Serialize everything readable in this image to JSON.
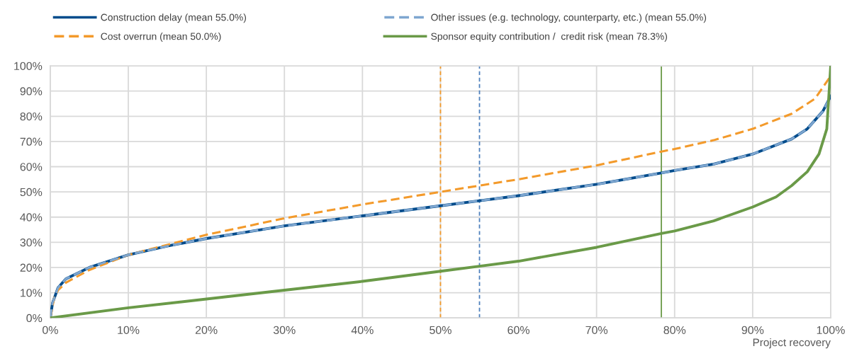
{
  "chart_data": {
    "type": "line",
    "xlabel": "Project recovery",
    "x": [
      0,
      0.3,
      1,
      2,
      5,
      10,
      15,
      20,
      25,
      30,
      40,
      50,
      55,
      60,
      70,
      78.3,
      80,
      85,
      90,
      95,
      97,
      99,
      100
    ],
    "series": [
      {
        "name": "Construction delay (mean 55.0%)",
        "color": "#004c8c",
        "line_style": "solid",
        "values": [
          0,
          6,
          12,
          15.5,
          20,
          25,
          28.5,
          31.5,
          34,
          36.5,
          40.5,
          44.5,
          46.5,
          48.5,
          53,
          57.5,
          58.5,
          61,
          65,
          71,
          75,
          82,
          88
        ]
      },
      {
        "name": "Cost overrun (mean 50.0%)",
        "color": "#f39a2b",
        "line_style": "dashed",
        "x": [
          0,
          0.2,
          0.5,
          1,
          2,
          5,
          10,
          15,
          20,
          30,
          40,
          50,
          55,
          60,
          70,
          78.3,
          80,
          85,
          90,
          95,
          98,
          100
        ],
        "values": [
          0,
          3,
          8,
          11,
          14,
          19,
          25,
          29,
          33,
          39.5,
          45,
          50,
          52.5,
          55,
          60.5,
          66,
          67,
          70.5,
          75,
          81,
          87,
          96
        ]
      },
      {
        "name": "Other issues (e.g. technology, counterparty, etc.) (mean 55.0%)",
        "color": "#7ea6d0",
        "line_style": "dashed",
        "values": [
          0,
          6,
          12,
          15.5,
          20,
          25,
          28.5,
          31.5,
          34,
          36.5,
          40.5,
          44.5,
          46.5,
          48.5,
          53,
          57.5,
          58.5,
          61,
          65,
          71,
          75,
          82,
          88
        ]
      },
      {
        "name": "Sponsor equity contribution /  credit risk (mean 78.3%)",
        "color": "#6a9a48",
        "line_style": "solid",
        "x": [
          0,
          10,
          20,
          30,
          40,
          50,
          55,
          60,
          70,
          78.3,
          80,
          85,
          90,
          93,
          95,
          97,
          98.5,
          99.5,
          100
        ],
        "values": [
          0,
          4,
          7.5,
          11,
          14.5,
          18.5,
          20.5,
          22.5,
          28,
          33.5,
          34.5,
          38.5,
          44,
          48,
          52.5,
          58,
          65,
          75,
          100
        ]
      }
    ],
    "ref_lines": [
      {
        "axis": "x",
        "value": 50,
        "color": "#f39a2b",
        "line_style": "dashed"
      },
      {
        "axis": "x",
        "value": 55,
        "color": "#4f81bd",
        "line_style": "dashed"
      },
      {
        "axis": "x",
        "value": 78.3,
        "color": "#6a9a48",
        "line_style": "solid"
      }
    ],
    "xlim": [
      0,
      100
    ],
    "xticks": [
      {
        "value": 0,
        "label": "0%"
      },
      {
        "value": 10,
        "label": "10%"
      },
      {
        "value": 20,
        "label": "20%"
      },
      {
        "value": 30,
        "label": "30%"
      },
      {
        "value": 40,
        "label": "40%"
      },
      {
        "value": 50,
        "label": "50%"
      },
      {
        "value": 60,
        "label": "60%"
      },
      {
        "value": 70,
        "label": "70%"
      },
      {
        "value": 80,
        "label": "80%"
      },
      {
        "value": 90,
        "label": "90%"
      },
      {
        "value": 100,
        "label": "100%"
      }
    ],
    "ylim": [
      0,
      100
    ],
    "yticks": [
      {
        "value": 0,
        "label": "0%"
      },
      {
        "value": 10,
        "label": "10%"
      },
      {
        "value": 20,
        "label": "20%"
      },
      {
        "value": 30,
        "label": "30%"
      },
      {
        "value": 40,
        "label": "40%"
      },
      {
        "value": 50,
        "label": "50%"
      },
      {
        "value": 60,
        "label": "60%"
      },
      {
        "value": 70,
        "label": "70%"
      },
      {
        "value": 80,
        "label": "80%"
      },
      {
        "value": 90,
        "label": "90%"
      },
      {
        "value": 100,
        "label": "100%"
      }
    ],
    "grid": true,
    "legend": "top"
  }
}
